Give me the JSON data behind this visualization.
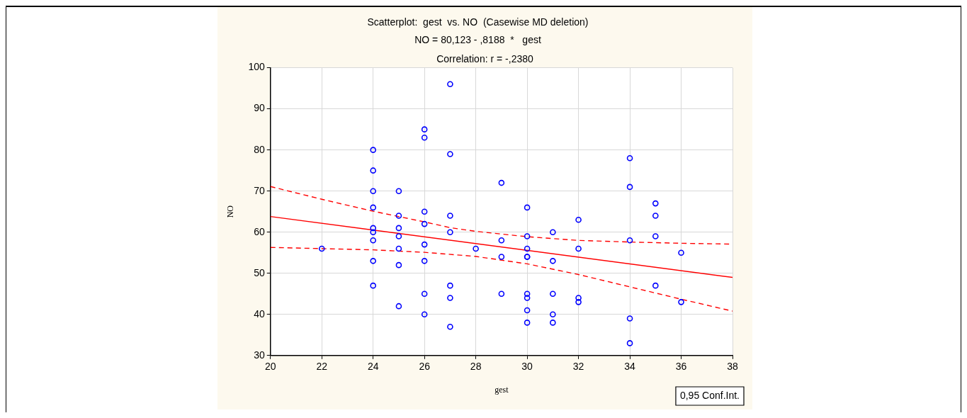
{
  "chart_data": {
    "type": "scatter",
    "title": "Scatterplot:  gest  vs. NO  (Casewise MD deletion)",
    "subtitle": "NO = 80,123 - ,8188  *   gest",
    "xlabel": "gest",
    "ylabel": "NO",
    "annotations": [
      "Correlation: r = -,2380",
      "0,95 Conf.Int."
    ],
    "xlim": [
      20,
      38
    ],
    "xticks": [
      20,
      22,
      24,
      26,
      28,
      30,
      32,
      34,
      36,
      38
    ],
    "ylim": [
      30,
      100
    ],
    "yticks": [
      30,
      40,
      50,
      60,
      70,
      80,
      90,
      100
    ],
    "grid": true,
    "legend": false,
    "series": [
      {
        "type": "scatter",
        "color": "#0000ff",
        "marker": "circle",
        "x": [
          22,
          24,
          24,
          24,
          24,
          24,
          24,
          24,
          24,
          24,
          25,
          25,
          25,
          25,
          25,
          25,
          25,
          26,
          26,
          26,
          26,
          26,
          26,
          26,
          26,
          27,
          27,
          27,
          27,
          27,
          27,
          27,
          28,
          29,
          29,
          29,
          29,
          30,
          30,
          30,
          30,
          30,
          30,
          30,
          30,
          30,
          31,
          31,
          31,
          31,
          31,
          32,
          32,
          32,
          32,
          34,
          34,
          34,
          34,
          34,
          35,
          35,
          35,
          35,
          36,
          36
        ],
        "values": [
          56,
          80,
          75,
          70,
          66,
          61,
          60,
          58,
          53,
          47,
          70,
          64,
          61,
          59,
          56,
          52,
          42,
          85,
          83,
          65,
          62,
          57,
          53,
          45,
          40,
          96,
          79,
          64,
          60,
          47,
          44,
          37,
          56,
          72,
          58,
          54,
          45,
          66,
          59,
          56,
          54,
          54,
          45,
          44,
          41,
          38,
          60,
          53,
          45,
          40,
          38,
          63,
          56,
          44,
          43,
          78,
          71,
          58,
          39,
          33,
          67,
          64,
          59,
          47,
          55,
          43
        ]
      },
      {
        "type": "line",
        "color": "#ff0000",
        "line_style": "solid",
        "marker": "none",
        "x": [
          20,
          38
        ],
        "values": [
          63.8,
          49.0
        ]
      },
      {
        "type": "line",
        "color": "#ff0000",
        "line_style": "dashed",
        "marker": "none",
        "x": [
          20,
          22,
          24,
          26,
          27,
          28,
          30,
          32,
          34,
          36,
          38
        ],
        "values": [
          71.1,
          68,
          65.1,
          62.5,
          61.1,
          60.2,
          58.9,
          58,
          57.6,
          57.3,
          57.1
        ]
      },
      {
        "type": "line",
        "color": "#ff0000",
        "line_style": "dashed",
        "marker": "none",
        "x": [
          20,
          22,
          24,
          26,
          28,
          30,
          32,
          34,
          36,
          38
        ],
        "values": [
          56.3,
          56,
          55.7,
          55.1,
          54.1,
          52.3,
          49.7,
          46.7,
          43.7,
          40.8
        ]
      }
    ]
  }
}
